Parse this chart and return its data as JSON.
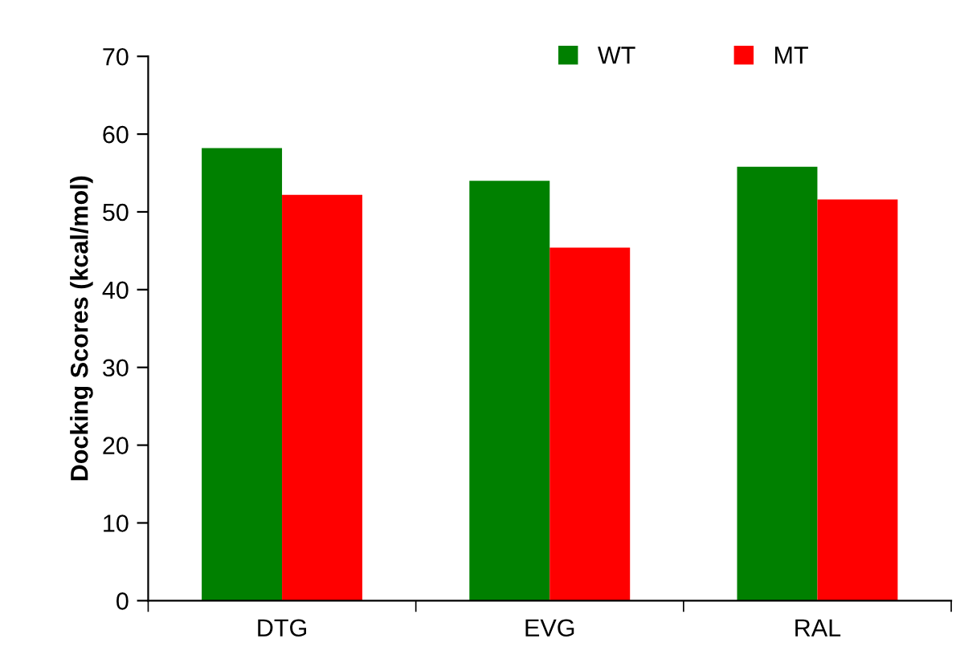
{
  "chart_data": {
    "type": "bar",
    "ylabel": "Docking Scores (kcal/mol)",
    "categories": [
      "DTG",
      "EVG",
      "RAL"
    ],
    "series": [
      {
        "name": "WT",
        "color": "#008000",
        "values": [
          58.2,
          54.0,
          55.8
        ]
      },
      {
        "name": "MT",
        "color": "#ff0000",
        "values": [
          52.2,
          45.4,
          51.6
        ]
      }
    ],
    "ylim": [
      0,
      70
    ],
    "yticks": [
      0,
      10,
      20,
      30,
      40,
      50,
      60,
      70
    ],
    "grid": false,
    "legend": "top right"
  }
}
